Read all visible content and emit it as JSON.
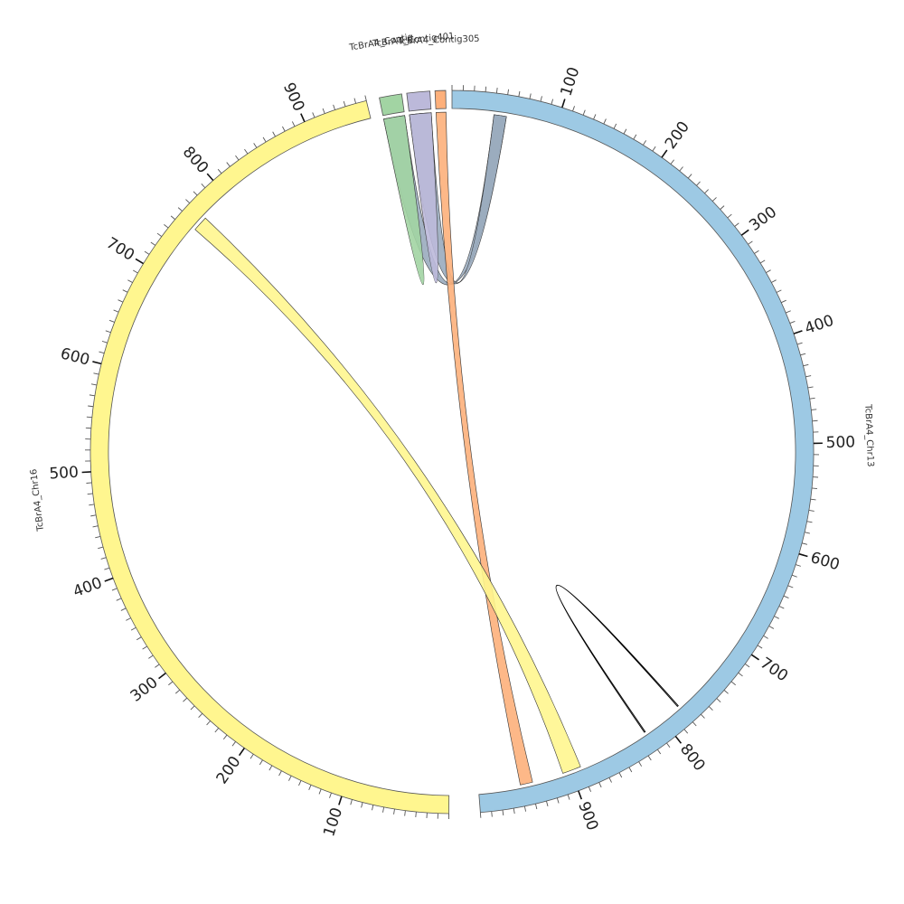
{
  "segments": [
    {
      "id": "chr13",
      "name": "TcBrA4_Chr13",
      "length": 990,
      "start_angle": 0,
      "end_angle": 175.5,
      "color": "#9DC9E4"
    },
    {
      "id": "chr16",
      "name": "TcBrA4_Chr16",
      "length": 960,
      "start_angle": 180.5,
      "end_angle": 346.3,
      "color": "#FFF68F"
    },
    {
      "id": "contig_green",
      "name": "TcBrA4_Contig",
      "length": 4,
      "start_angle": 348.4,
      "end_angle": 352.0,
      "color": "#A2D4A3"
    },
    {
      "id": "contig_purple",
      "name": "TcBrA4_Contig401",
      "length": 4,
      "start_angle": 352.8,
      "end_angle": 356.5,
      "color": "#BCB9DA"
    },
    {
      "id": "contig305",
      "name": "TcBrA4_Contig305",
      "length": 4,
      "start_angle": 357.3,
      "end_angle": 359.0,
      "color": "#FDB07B"
    }
  ],
  "links": [
    {
      "from": {
        "seg": "chr13",
        "start": 40,
        "end": 52
      },
      "to": {
        "seg": "contig_green",
        "start": 0,
        "end": 4
      },
      "color": "#9AABBE"
    },
    {
      "from": {
        "seg": "chr13",
        "start": 40,
        "end": 52
      },
      "to": {
        "seg": "contig_purple",
        "start": 0,
        "end": 4
      },
      "color": "#9AABBE"
    },
    {
      "from": {
        "seg": "contig_green",
        "start": 0,
        "end": 4
      },
      "to": {
        "seg": "contig_green",
        "start": 0,
        "end": 4
      },
      "color": "#A2D4A3"
    },
    {
      "from": {
        "seg": "contig_purple",
        "start": 0,
        "end": 4
      },
      "to": {
        "seg": "contig_purple",
        "start": 0,
        "end": 4
      },
      "color": "#BCB9DA"
    },
    {
      "from": {
        "seg": "contig305",
        "start": 0,
        "end": 4
      },
      "to": {
        "seg": "chr13",
        "start": 938,
        "end": 950
      },
      "color": "#FDB07B"
    },
    {
      "from": {
        "seg": "chr16",
        "start": 755,
        "end": 770
      },
      "to": {
        "seg": "chr13",
        "start": 890,
        "end": 908
      },
      "color": "#FFF68F"
    },
    {
      "from": {
        "seg": "chr13",
        "start": 780,
        "end": 781
      },
      "to": {
        "seg": "chr13",
        "start": 820,
        "end": 821
      },
      "color": "#000000"
    }
  ]
}
